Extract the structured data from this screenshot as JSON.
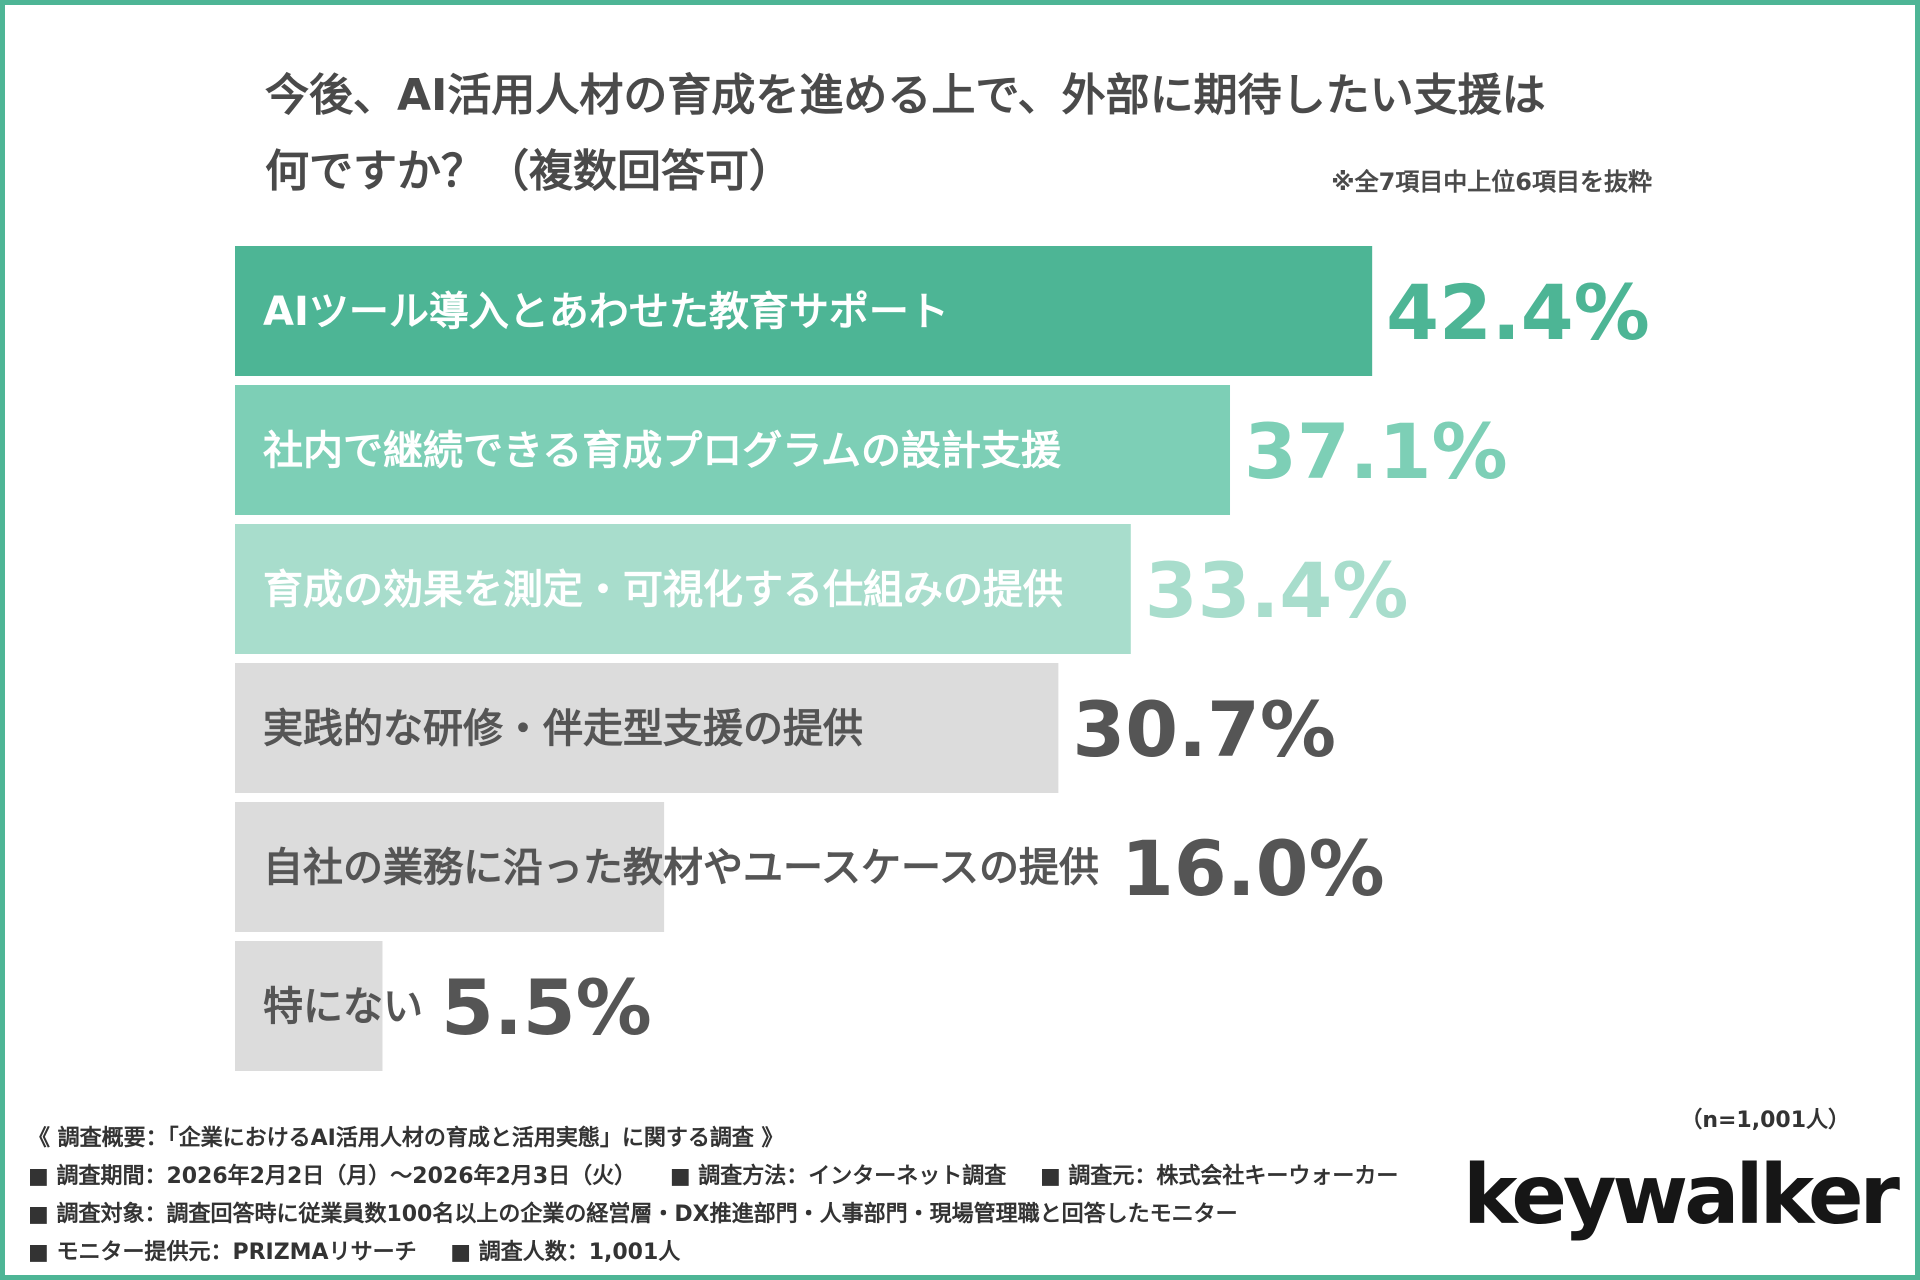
{
  "title": {
    "line1": "今後、AI活用人材の育成を進める上で、外部に期待したい支援は",
    "line2": "何ですか？（複数回答可）"
  },
  "note": "※全7項目中上位6項目を抜粋",
  "colors": {
    "frame": "#4db595",
    "bar_top": "#4db595",
    "bar_second": "#7dcfb6",
    "bar_third": "#a8ddcc",
    "bar_gray": "#dcdcdc",
    "label_dark": "#ffffff",
    "label_gray": "#555555",
    "value_gray": "#555555"
  },
  "chart_data": {
    "type": "bar",
    "orientation": "horizontal",
    "categories": [
      "AIツール導入とあわせた教育サポート",
      "社内で継続できる育成プログラムの設計支援",
      "育成の効果を測定・可視化する仕組みの提供",
      "実践的な研修・伴走型支援の提供",
      "自社の業務に沿った教材やユースケースの提供",
      "特にない"
    ],
    "values": [
      42.4,
      37.1,
      33.4,
      30.7,
      16.0,
      5.5
    ],
    "value_labels": [
      "42.4%",
      "37.1%",
      "33.4%",
      "30.7%",
      "16.0%",
      "5.5%"
    ],
    "unit": "%",
    "xlim": [
      0,
      50
    ],
    "grid": false,
    "legend": "none"
  },
  "footer": {
    "overview": "《 調査概要：「企業におけるAI活用人材の育成と活用実態」に関する調査 》",
    "period": "■ 調査期間：2026年2月2日（月）～2026年2月3日（火）",
    "method": "■ 調査方法：インターネット調査",
    "source": "■ 調査元：株式会社キーウォーカー",
    "target": "■ 調査対象：調査回答時に従業員数100名以上の企業の経営層・DX推進部門・人事部門・現場管理職と回答したモニター",
    "provider": "■ モニター提供元：PRIZMAリサーチ",
    "count": "■ 調査人数：1,001人"
  },
  "sample_size": "（n=1,001人）",
  "logo_text": "keywalker"
}
